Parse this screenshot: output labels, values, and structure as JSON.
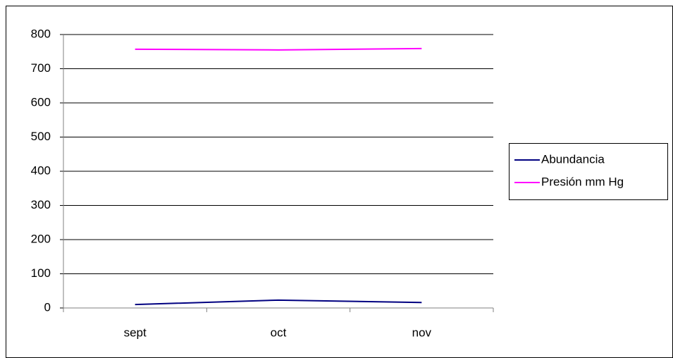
{
  "chart_data": {
    "type": "line",
    "categories": [
      "sept",
      "oct",
      "nov"
    ],
    "series": [
      {
        "name": "Abundancia",
        "color": "#000080",
        "values": [
          10,
          23,
          16
        ]
      },
      {
        "name": "Presión mm Hg",
        "color": "#ff00ff",
        "values": [
          757,
          755,
          759
        ]
      }
    ],
    "ylim": [
      0,
      800
    ],
    "yticks": [
      0,
      100,
      200,
      300,
      400,
      500,
      600,
      700,
      800
    ],
    "grid": true,
    "legend": "right"
  }
}
